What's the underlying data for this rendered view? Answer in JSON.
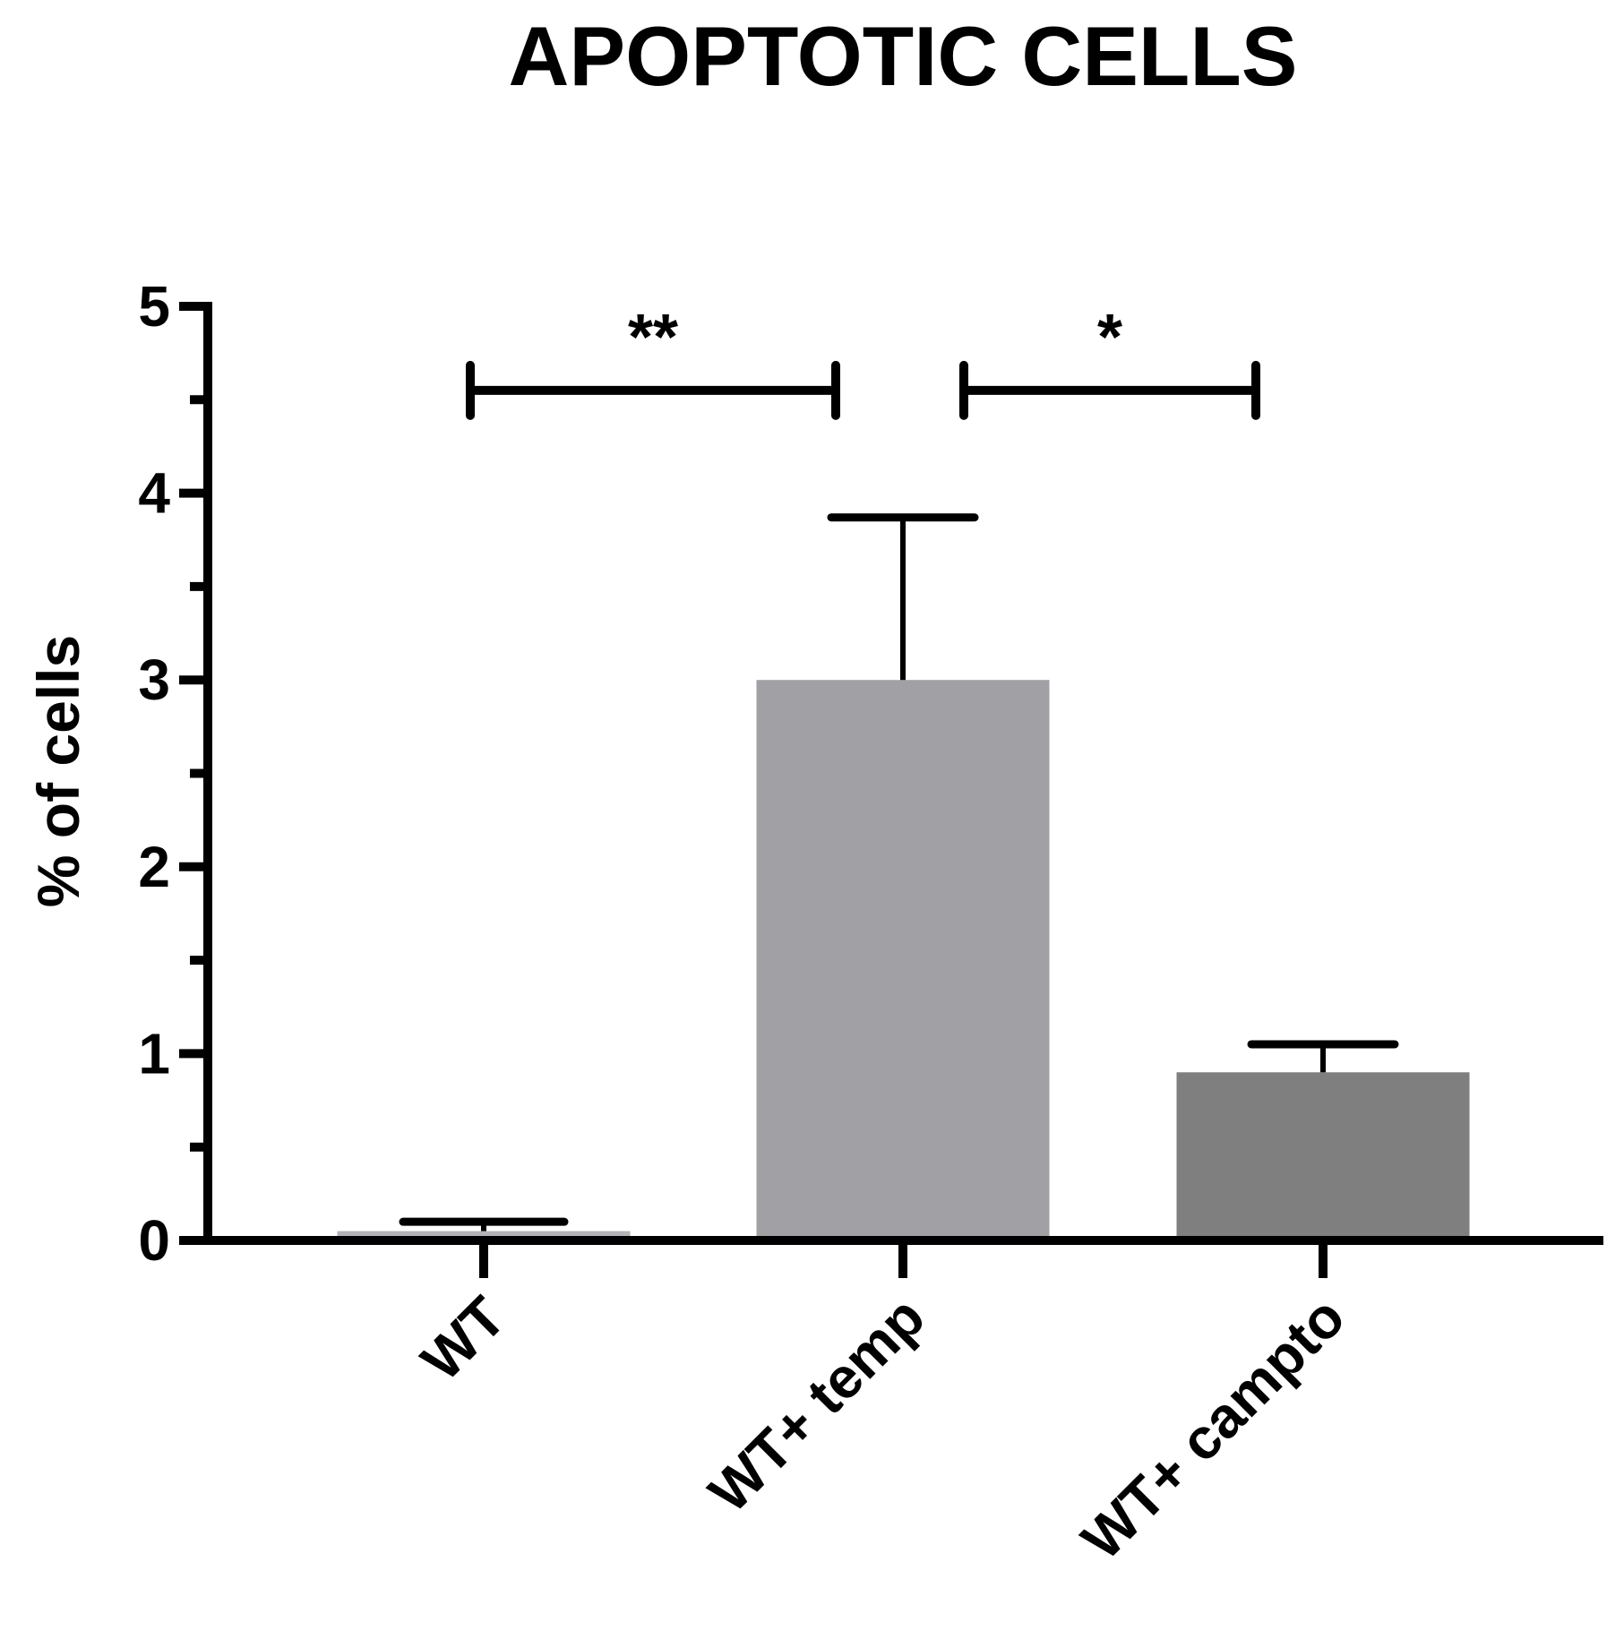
{
  "chart_data": {
    "type": "bar",
    "title": "APOPTOTIC CELLS",
    "xlabel": "",
    "ylabel": "% of cells",
    "categories": [
      "WT",
      "WT+ temp",
      "WT+ campto"
    ],
    "values": [
      0.05,
      3.0,
      0.9
    ],
    "error_bars": [
      0.05,
      0.87,
      0.15
    ],
    "bar_colors": [
      "#b2b2b7",
      "#a1a1a5",
      "#7f7f7f"
    ],
    "ylim": [
      0,
      5
    ],
    "yticks": [
      "0",
      "1",
      "2",
      "3",
      "4",
      "5"
    ],
    "grid": false,
    "significance": [
      {
        "from": "WT",
        "to": "WT+ temp",
        "label": "**",
        "y": 4.55
      },
      {
        "from": "WT+ temp",
        "to": "WT+ campto",
        "label": "*",
        "y": 4.55
      }
    ]
  }
}
